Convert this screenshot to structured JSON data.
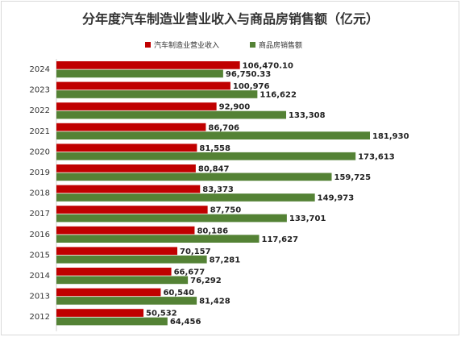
{
  "colors": {
    "auto": "#c00000",
    "housing": "#548235"
  },
  "chart_data": {
    "type": "bar",
    "orientation": "horizontal",
    "title": "分年度汽车制造业营业收入与商品房销售额（亿元）",
    "legend_position": "top",
    "grid": false,
    "categories": [
      "2024",
      "2023",
      "2022",
      "2021",
      "2020",
      "2019",
      "2018",
      "2017",
      "2016",
      "2015",
      "2014",
      "2013",
      "2012"
    ],
    "series": [
      {
        "name": "汽车制造业营业收入",
        "values": [
          106470.1,
          100976,
          92900,
          86706,
          81558,
          80847,
          83373,
          87750,
          80186,
          70157,
          66677,
          60540,
          50532
        ],
        "labels": [
          "106,470.10",
          "100,976",
          "92,900",
          "86,706",
          "81,558",
          "80,847",
          "83,373",
          "87,750",
          "80,186",
          "70,157",
          "66,677",
          "60,540",
          "50,532"
        ]
      },
      {
        "name": "商品房销售额",
        "values": [
          96750.33,
          116622,
          133308,
          181930,
          173613,
          159725,
          149973,
          133701,
          117627,
          87281,
          76292,
          81428,
          64456
        ],
        "labels": [
          "96,750.33",
          "116,622",
          "133,308",
          "181,930",
          "173,613",
          "159,725",
          "149,973",
          "133,701",
          "117,627",
          "87,281",
          "76,292",
          "81,428",
          "64,456"
        ]
      }
    ],
    "xlim": [
      0,
      181930
    ]
  }
}
